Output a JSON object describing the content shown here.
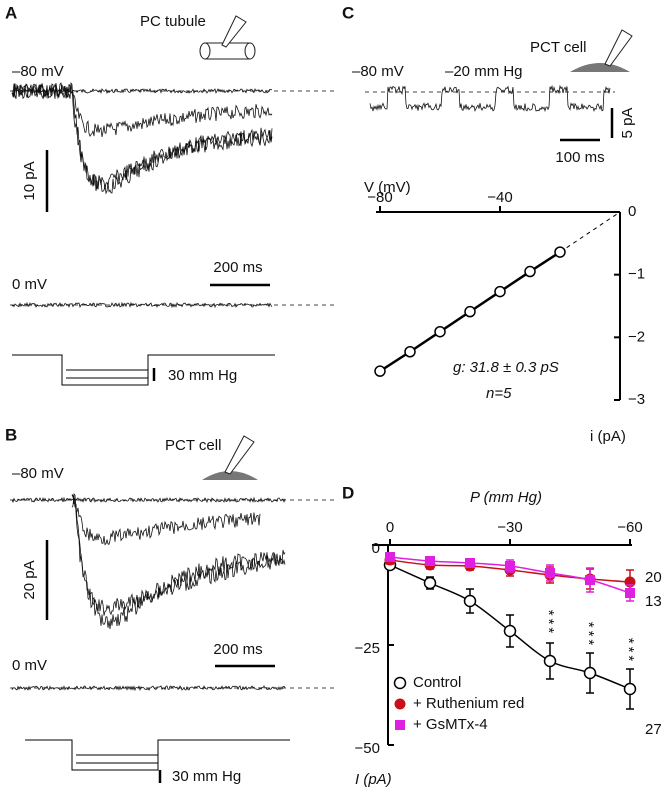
{
  "panels": {
    "A": {
      "label": "A",
      "cell": "PC tubule",
      "hold1": "–80 mV",
      "scale_current": "10 pA",
      "scale_time": "200 ms",
      "hold2": "0 mV",
      "scale_pressure": "30 mm Hg"
    },
    "B": {
      "label": "B",
      "cell": "PCT cell",
      "hold1": "–80 mV",
      "scale_current": "20 pA",
      "scale_time": "200 ms",
      "hold2": "0 mV",
      "scale_pressure": "30 mm Hg"
    },
    "C": {
      "label": "C",
      "cell": "PCT cell",
      "hold": "–80 mV",
      "pressure": "–20 mm Hg",
      "scale_current": "5 pA",
      "scale_time": "100 ms"
    },
    "D": {
      "label": "D"
    }
  },
  "chart_data": [
    {
      "type": "scatter",
      "xlabel": "V (mV)",
      "ylabel": "i (pA)",
      "x": [
        -80,
        -70,
        -60,
        -50,
        -40,
        -30,
        -20
      ],
      "values": [
        -2.54,
        -2.23,
        -1.91,
        -1.59,
        -1.27,
        -0.95,
        -0.64
      ],
      "xlim": [
        -80,
        0
      ],
      "ylim": [
        -3,
        0
      ],
      "xticks": [
        {
          "value": -80,
          "label": "−80"
        },
        {
          "value": -40,
          "label": "−40"
        }
      ],
      "yticks": [
        0,
        {
          "value": -1,
          "label": "−1"
        },
        {
          "value": -2,
          "label": "−2"
        },
        {
          "value": -3,
          "label": "−3"
        }
      ],
      "annotations": [
        "g: 31.8 ± 0.3 pS",
        "n=5"
      ]
    },
    {
      "type": "line",
      "xlabel": "P (mm Hg)",
      "ylabel": "I (pA)",
      "x": [
        0,
        -10,
        -20,
        -30,
        -40,
        -50,
        -60
      ],
      "xlim": [
        0,
        -60
      ],
      "ylim": [
        -50,
        0
      ],
      "xticks": [
        0,
        {
          "value": -30,
          "label": "−30"
        },
        {
          "value": -60,
          "label": "−60"
        }
      ],
      "yticks": [
        0,
        {
          "value": -25,
          "label": "−25"
        },
        {
          "value": -50,
          "label": "−50"
        }
      ],
      "series": [
        {
          "name": "Control",
          "color": "#000000",
          "values": [
            -5,
            -9.5,
            -14,
            -21.5,
            -29,
            -32,
            -36
          ],
          "errors": [
            1,
            1.5,
            3,
            4,
            4.5,
            5,
            5
          ],
          "end_label": "27",
          "significance": [
            null,
            null,
            null,
            null,
            "***",
            "***",
            "***"
          ]
        },
        {
          "name": "+ Ruthenium red",
          "color": "#c8101a",
          "values": [
            -3.75,
            -5,
            -5.25,
            -6.25,
            -7.5,
            -8.5,
            -9.25
          ],
          "errors": [
            1,
            1,
            1,
            1.5,
            2,
            2.5,
            3
          ],
          "end_label": "20"
        },
        {
          "name": "+ GsMTx-4",
          "color": "#e020e0",
          "values": [
            -3,
            -4,
            -4.5,
            -5.25,
            -7,
            -8.75,
            -12
          ],
          "errors": [
            1,
            1,
            1,
            1.5,
            2,
            3,
            2
          ],
          "end_label": "13"
        }
      ]
    }
  ]
}
